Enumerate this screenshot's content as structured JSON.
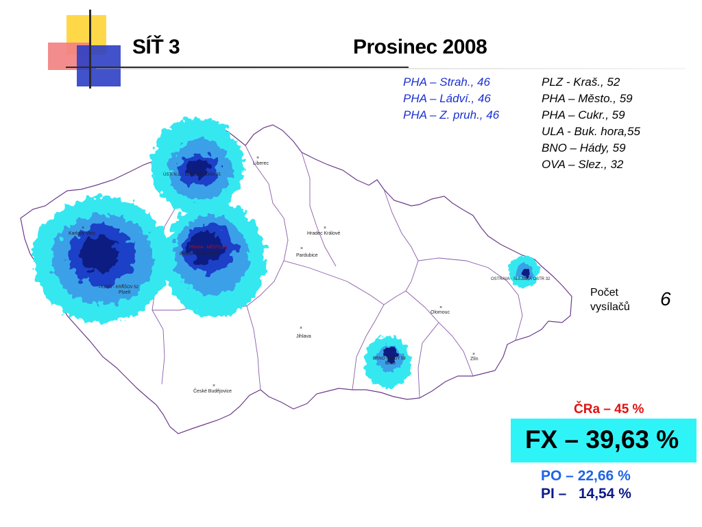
{
  "header": {
    "network": "SÍŤ 3",
    "period": "Prosinec 2008"
  },
  "transmitters_blue": [
    "PHA – Strah., 46",
    "PHA – Ládví., 46",
    "PHA – Z. pruh., 46"
  ],
  "transmitters_black": [
    "PLZ - Kraš., 52",
    "PHA – Město., 59",
    "PHA – Cukr., 59",
    "ULA - Buk. hora,55",
    "BNO – Hády, 59",
    "OVA – Slez., 32"
  ],
  "count": {
    "label_line1": "Počet",
    "label_line2": "vysílačů",
    "value": "6"
  },
  "coverage": {
    "cra": "ČRa – 45 %",
    "fx": "FX – 39,63 %",
    "po": "PO – 22,66 %",
    "pi": "PI –   14,54 %"
  },
  "map": {
    "cities": [
      "Liberec",
      "Karlovy Vary",
      "Hradec Králové",
      "Pardubice",
      "Plzeň",
      "Jihlava",
      "Olomouc",
      "Zlín",
      "Brno",
      "České Budějovice"
    ],
    "transmitter_labels": [
      "ÚSTÍ N.L. - BUKOVÁ HORA 55",
      "PRAHA - MĚSTO 59",
      "PRAHA - Z.PRUH 46",
      "PLZEŇ - KRAŠOV 52",
      "BRNO - HÁDY 59",
      "OSTRAVA - SLEZSKÁ OSTR 32"
    ],
    "colors": {
      "coverage_light": "#35e8f0",
      "coverage_mid": "#3aa0e8",
      "coverage_dark": "#1a3fc8",
      "coverage_core": "#0a1a80",
      "borders": "#6b3a8a"
    }
  }
}
